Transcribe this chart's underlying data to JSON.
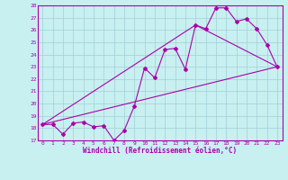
{
  "title": "",
  "xlabel": "Windchill (Refroidissement éolien,°C)",
  "xlim": [
    -0.5,
    23.5
  ],
  "ylim": [
    17,
    28
  ],
  "yticks": [
    17,
    18,
    19,
    20,
    21,
    22,
    23,
    24,
    25,
    26,
    27,
    28
  ],
  "xticks": [
    0,
    1,
    2,
    3,
    4,
    5,
    6,
    7,
    8,
    9,
    10,
    11,
    12,
    13,
    14,
    15,
    16,
    17,
    18,
    19,
    20,
    21,
    22,
    23
  ],
  "background_color": "#c8f0f0",
  "grid_color": "#a0d0d8",
  "line_color": "#aa00aa",
  "line1_x": [
    0,
    1,
    2,
    3,
    4,
    5,
    6,
    7,
    8,
    9,
    10,
    11,
    12,
    13,
    14,
    15,
    16,
    17,
    18,
    19,
    20,
    21,
    22,
    23
  ],
  "line1_y": [
    18.3,
    18.3,
    17.5,
    18.4,
    18.5,
    18.1,
    18.2,
    17.0,
    17.8,
    19.8,
    22.9,
    22.1,
    24.4,
    24.5,
    22.8,
    26.4,
    26.1,
    27.8,
    27.8,
    26.7,
    26.9,
    26.1,
    24.8,
    23.0
  ],
  "line2_x": [
    0,
    23
  ],
  "line2_y": [
    18.3,
    23.0
  ],
  "line3_x": [
    0,
    15,
    23
  ],
  "line3_y": [
    18.3,
    26.4,
    23.0
  ],
  "marker": "D",
  "markersize": 2.0,
  "linewidth": 0.8
}
